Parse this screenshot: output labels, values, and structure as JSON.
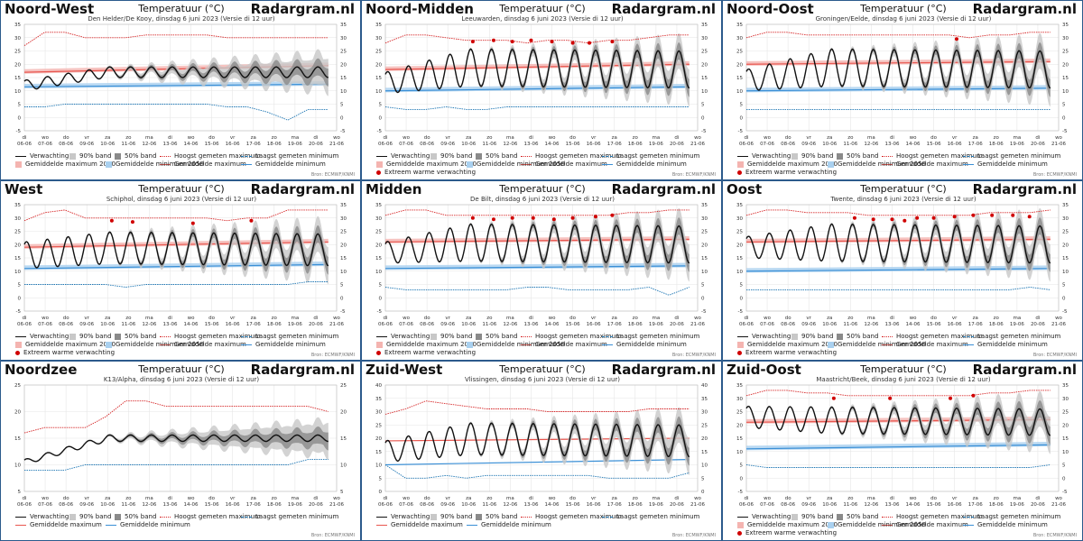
{
  "brand": "Radargram.nl",
  "chart_title": "Temperatuur (°C)",
  "credit": "Bron: ECMWF/KNMI",
  "x_tick_days": [
    "di",
    "wo",
    "do",
    "vr",
    "za",
    "zo",
    "ma",
    "di",
    "wo",
    "do",
    "vr",
    "za",
    "zo",
    "ma",
    "di",
    "wo"
  ],
  "x_tick_dates": [
    "06-06",
    "07-06",
    "08-06",
    "09-06",
    "10-06",
    "11-06",
    "12-06",
    "13-06",
    "14-06",
    "15-06",
    "16-06",
    "17-06",
    "18-06",
    "19-06",
    "20-06",
    "21-06"
  ],
  "legend_labels": {
    "forecast": "Verwachting",
    "band90": "90% band",
    "band50": "50% band",
    "max_record": "Hoogst gemeten maximum",
    "min_record": "Laagst gemeten minimum",
    "avg_max": "Gemiddelde maximum",
    "avg_min": "Gemiddelde minimum",
    "avg_max_2050": "Gemiddelde maximum 2050",
    "avg_min_2050": "Gemiddelde minimum 2050",
    "extreme": "Extreem warme verwachting"
  },
  "colors": {
    "forecast": "#111111",
    "band90": "#c8c8c8",
    "band50": "#8a8a8a",
    "max_record": "#d62728",
    "min_record": "#1f77b4",
    "avg_max": "#e8554e",
    "avg_min": "#3a8fd6",
    "avg_2050_max": "#f4b4b0",
    "avg_2050_min": "#a9d0ef",
    "extreme": "#d00000",
    "border": "#2c5a8c"
  },
  "chart_data": [
    {
      "type": "line",
      "region": "Noord-West",
      "subtitle": "Den Helder/De Kooy, dinsdag 6 juni 2023 (Versie di 12 uur)",
      "ylim": [
        -5,
        35
      ],
      "yticks": [
        -5,
        0,
        5,
        10,
        15,
        20,
        25,
        30,
        35
      ],
      "start": 12,
      "amp_start": 2,
      "amp": 2,
      "mean": 17,
      "mean_end": 17,
      "max_record": [
        27,
        32,
        32,
        30,
        30,
        30,
        31,
        31,
        31,
        31,
        30,
        30,
        30,
        30,
        30,
        30
      ],
      "min_record": [
        4,
        4,
        5,
        5,
        5,
        5,
        5,
        5,
        5,
        5,
        4,
        4,
        2,
        -1,
        3,
        3
      ],
      "avg_max": [
        17,
        19.5
      ],
      "avg_min": [
        11.5,
        12.5
      ],
      "with_2050": true,
      "extremes": [],
      "legend_set": "2050"
    },
    {
      "type": "line",
      "region": "Noord-Midden",
      "subtitle": "Leeuwarden, dinsdag 6 juni 2023 (Versie di 12 uur)",
      "ylim": [
        -5,
        35
      ],
      "yticks": [
        -5,
        0,
        5,
        10,
        15,
        20,
        25,
        30,
        35
      ],
      "start": 13,
      "amp_start": 4,
      "amp": 7,
      "mean": 19,
      "mean_end": 18,
      "max_record": [
        28,
        31,
        31,
        30,
        29,
        29,
        29,
        28,
        29,
        29,
        28,
        29,
        29,
        30,
        31,
        31
      ],
      "min_record": [
        4,
        3,
        3,
        4,
        3,
        3,
        4,
        4,
        4,
        4,
        4,
        4,
        4,
        4,
        4,
        4
      ],
      "avg_max": [
        18,
        20
      ],
      "avg_min": [
        10,
        11.5
      ],
      "with_2050": true,
      "extremes": [
        [
          4.2,
          28.5
        ],
        [
          5.2,
          29
        ],
        [
          6.1,
          28.5
        ],
        [
          7,
          29
        ],
        [
          8,
          28.5
        ],
        [
          9,
          28
        ],
        [
          9.8,
          28
        ],
        [
          10.9,
          28.5
        ]
      ],
      "legend_set": "2050x"
    },
    {
      "type": "line",
      "region": "Noord-Oost",
      "subtitle": "Groningen/Eelde, dinsdag 6 juni 2023 (Versie di 12 uur)",
      "ylim": [
        -5,
        35
      ],
      "yticks": [
        -5,
        0,
        5,
        10,
        15,
        20,
        25,
        30,
        35
      ],
      "start": 14,
      "amp_start": 4,
      "amp": 7,
      "mean": 19,
      "mean_end": 18,
      "max_record": [
        30,
        32,
        32,
        31,
        31,
        31,
        31,
        31,
        31,
        31,
        31,
        30,
        31,
        31,
        32,
        32
      ],
      "min_record": [
        3,
        3,
        3,
        3,
        3,
        3,
        3,
        3,
        3,
        3,
        3,
        3,
        3,
        3,
        3,
        3
      ],
      "avg_max": [
        20,
        21
      ],
      "avg_min": [
        10,
        11
      ],
      "with_2050": true,
      "extremes": [
        [
          10.1,
          29.5
        ]
      ],
      "legend_set": "2050x"
    },
    {
      "type": "line",
      "region": "West",
      "subtitle": "Schiphol, dinsdag 6 juni 2023 (Versie di 12 uur)",
      "ylim": [
        -5,
        35
      ],
      "yticks": [
        -5,
        0,
        5,
        10,
        15,
        20,
        25,
        30,
        35
      ],
      "start": 16,
      "amp_start": 5,
      "amp": 6,
      "mean": 19,
      "mean_end": 18,
      "max_record": [
        29,
        32,
        33,
        30,
        30,
        30,
        30,
        30,
        30,
        30,
        29,
        30,
        30,
        33,
        33,
        33
      ],
      "min_record": [
        5,
        5,
        5,
        5,
        5,
        4,
        5,
        5,
        5,
        5,
        5,
        5,
        5,
        5,
        6,
        6
      ],
      "avg_max": [
        19,
        21
      ],
      "avg_min": [
        11,
        12.5
      ],
      "with_2050": true,
      "extremes": [
        [
          4.2,
          29
        ],
        [
          5.2,
          28.5
        ],
        [
          8.1,
          28
        ],
        [
          10.9,
          29
        ]
      ],
      "legend_set": "2050x"
    },
    {
      "type": "line",
      "region": "Midden",
      "subtitle": "De Bilt, dinsdag 6 juni 2023 (Versie di 12 uur)",
      "ylim": [
        -5,
        35
      ],
      "yticks": [
        -5,
        0,
        5,
        10,
        15,
        20,
        25,
        30,
        35
      ],
      "start": 17,
      "amp_start": 4,
      "amp": 7,
      "mean": 21,
      "mean_end": 20,
      "max_record": [
        31,
        33,
        33,
        31,
        31,
        31,
        31,
        31,
        31,
        31,
        31,
        31,
        32,
        32,
        33,
        33
      ],
      "min_record": [
        4,
        3,
        3,
        3,
        3,
        3,
        3,
        4,
        4,
        3,
        3,
        3,
        3,
        4,
        1,
        4
      ],
      "avg_max": [
        21,
        22
      ],
      "avg_min": [
        11,
        12
      ],
      "with_2050": true,
      "extremes": [
        [
          4.2,
          30
        ],
        [
          5.2,
          29.5
        ],
        [
          6.1,
          30
        ],
        [
          7.1,
          30
        ],
        [
          8.1,
          29.5
        ],
        [
          9,
          30
        ],
        [
          10.1,
          30.5
        ],
        [
          10.9,
          31
        ]
      ],
      "legend_set": "2050x"
    },
    {
      "type": "line",
      "region": "Oost",
      "subtitle": "Twente, dinsdag 6 juni 2023 (Versie di 12 uur)",
      "ylim": [
        -5,
        35
      ],
      "yticks": [
        -5,
        0,
        5,
        10,
        15,
        20,
        25,
        30,
        35
      ],
      "start": 19,
      "amp_start": 4,
      "amp": 7,
      "mean": 21,
      "mean_end": 20,
      "max_record": [
        31,
        33,
        33,
        32,
        32,
        32,
        31,
        31,
        31,
        31,
        31,
        31,
        32,
        32,
        32,
        33
      ],
      "min_record": [
        3,
        3,
        3,
        3,
        3,
        3,
        3,
        3,
        3,
        3,
        3,
        3,
        3,
        3,
        4,
        3
      ],
      "avg_max": [
        21,
        22
      ],
      "avg_min": [
        10,
        11
      ],
      "with_2050": true,
      "extremes": [
        [
          5.2,
          30
        ],
        [
          6.1,
          29.5
        ],
        [
          7,
          29.5
        ],
        [
          7.6,
          29
        ],
        [
          8.2,
          30
        ],
        [
          9,
          30
        ],
        [
          10,
          30.5
        ],
        [
          10.9,
          31
        ],
        [
          11.8,
          31
        ],
        [
          12.8,
          31
        ],
        [
          13.6,
          30.5
        ]
      ],
      "legend_set": "2050x"
    },
    {
      "type": "line",
      "region": "Noordzee",
      "subtitle": "K13/Alpha, dinsdag 6 juni 2023 (Versie di 12 uur)",
      "ylim": [
        5,
        25
      ],
      "yticks": [
        5,
        10,
        15,
        20,
        25
      ],
      "start": 10.5,
      "amp_start": 0.5,
      "amp": 0.6,
      "mean": 15,
      "mean_end": 15,
      "max_record": [
        16,
        17,
        17,
        17,
        19,
        22,
        22,
        21,
        21,
        21,
        21,
        21,
        21,
        21,
        21,
        20
      ],
      "min_record": [
        9,
        9,
        9,
        10,
        10,
        10,
        10,
        10,
        10,
        10,
        10,
        10,
        10,
        10,
        11,
        11
      ],
      "avg_max": [],
      "avg_min": [],
      "with_2050": false,
      "extremes": [],
      "legend_set": "basic"
    },
    {
      "type": "line",
      "region": "Zuid-West",
      "subtitle": "Vlissingen, dinsdag 6 juni 2023 (Versie di 12 uur)",
      "ylim": [
        0,
        40
      ],
      "yticks": [
        0,
        5,
        10,
        15,
        20,
        25,
        30,
        35,
        40
      ],
      "start": 15,
      "amp_start": 4,
      "amp": 6,
      "mean": 20,
      "mean_end": 19,
      "max_record": [
        29,
        31,
        34,
        33,
        32,
        31,
        31,
        31,
        30,
        30,
        30,
        30,
        30,
        31,
        31,
        31
      ],
      "min_record": [
        10,
        5,
        5,
        6,
        5,
        6,
        6,
        6,
        6,
        6,
        6,
        5,
        5,
        5,
        5,
        7
      ],
      "avg_max": [
        19,
        20
      ],
      "avg_min": [
        10,
        12
      ],
      "with_2050": false,
      "extremes": [],
      "legend_set": "basic"
    },
    {
      "type": "line",
      "region": "Zuid-Oost",
      "subtitle": "Maastricht/Beek, dinsdag 6 juni 2023 (Versie di 12 uur)",
      "ylim": [
        -5,
        35
      ],
      "yticks": [
        -5,
        0,
        5,
        10,
        15,
        20,
        25,
        30,
        35
      ],
      "start": 23,
      "amp_start": 4,
      "amp": 5,
      "mean": 22,
      "mean_end": 21,
      "max_record": [
        31,
        33,
        33,
        32,
        32,
        31,
        31,
        31,
        31,
        31,
        31,
        31,
        32,
        32,
        33,
        33
      ],
      "min_record": [
        5,
        4,
        4,
        4,
        4,
        4,
        4,
        4,
        4,
        4,
        4,
        4,
        4,
        4,
        4,
        5
      ],
      "avg_max": [
        21,
        22
      ],
      "avg_min": [
        11,
        12.5
      ],
      "with_2050": true,
      "extremes": [
        [
          4.2,
          30
        ],
        [
          6.9,
          30
        ],
        [
          9.8,
          30
        ],
        [
          10.9,
          31
        ]
      ],
      "legend_set": "2050x"
    }
  ]
}
